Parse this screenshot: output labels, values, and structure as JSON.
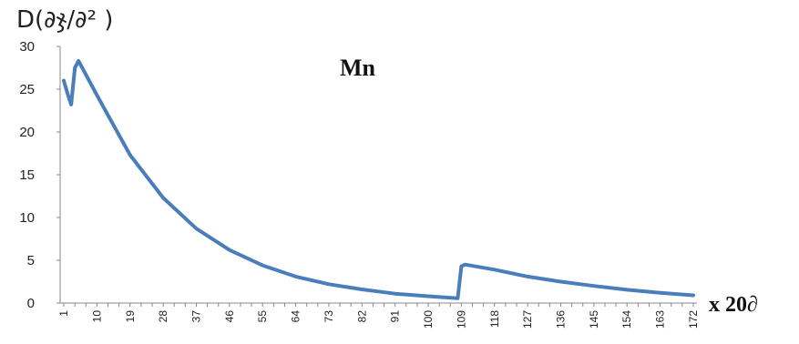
{
  "chart_data": {
    "type": "line",
    "title": "Mn",
    "ylabel": "D(∂ჯ/∂² )",
    "xlabel": "x 20∂",
    "ylim": [
      0,
      30
    ],
    "yticks": [
      0,
      5,
      10,
      15,
      20,
      25,
      30
    ],
    "xticks": [
      1,
      10,
      19,
      28,
      37,
      46,
      55,
      64,
      73,
      82,
      91,
      100,
      109,
      118,
      127,
      136,
      145,
      154,
      163,
      172
    ],
    "grid": false,
    "series": [
      {
        "color": "#4a7ebb",
        "points": [
          [
            1,
            26
          ],
          [
            2,
            24.5
          ],
          [
            3,
            23.2
          ],
          [
            4,
            27.5
          ],
          [
            5,
            28.3
          ],
          [
            10,
            24.3
          ],
          [
            19,
            17.3
          ],
          [
            28,
            12.3
          ],
          [
            37,
            8.7
          ],
          [
            46,
            6.2
          ],
          [
            55,
            4.4
          ],
          [
            64,
            3.1
          ],
          [
            73,
            2.2
          ],
          [
            82,
            1.6
          ],
          [
            91,
            1.1
          ],
          [
            100,
            0.8
          ],
          [
            108,
            0.55
          ],
          [
            109,
            4.3
          ],
          [
            110,
            4.5
          ],
          [
            118,
            3.9
          ],
          [
            127,
            3.1
          ],
          [
            136,
            2.5
          ],
          [
            145,
            2.0
          ],
          [
            154,
            1.55
          ],
          [
            163,
            1.2
          ],
          [
            172,
            0.9
          ]
        ]
      }
    ]
  }
}
